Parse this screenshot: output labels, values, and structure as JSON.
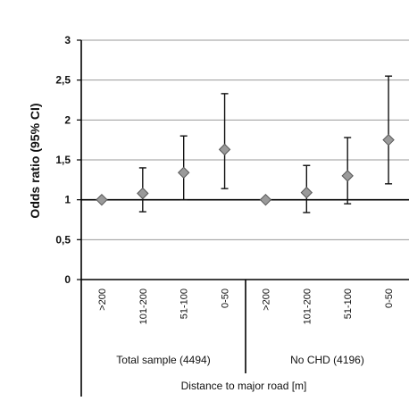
{
  "chart_data": {
    "type": "scatter",
    "ylabel": "Odds ratio (95% CI)",
    "xlabel": "Distance to major road [m]",
    "ylim": [
      0,
      3
    ],
    "yticks": [
      {
        "value": 0,
        "label": "0"
      },
      {
        "value": 0.5,
        "label": "0,5"
      },
      {
        "value": 1,
        "label": "1"
      },
      {
        "value": 1.5,
        "label": "1,5"
      },
      {
        "value": 2,
        "label": "2"
      },
      {
        "value": 2.5,
        "label": "2,5"
      },
      {
        "value": 3,
        "label": "3"
      }
    ],
    "grid": true,
    "reference_line": 1,
    "groups": [
      {
        "label": "Total sample (4494)",
        "points": [
          {
            "category": ">200",
            "or": 1.0,
            "ci_low": 1.0,
            "ci_high": 1.0
          },
          {
            "category": "101-200",
            "or": 1.08,
            "ci_low": 0.85,
            "ci_high": 1.4
          },
          {
            "category": "51-100",
            "or": 1.34,
            "ci_low": 1.0,
            "ci_high": 1.8
          },
          {
            "category": "0-50",
            "or": 1.63,
            "ci_low": 1.14,
            "ci_high": 2.33
          }
        ]
      },
      {
        "label": "No CHD (4196)",
        "points": [
          {
            "category": ">200",
            "or": 1.0,
            "ci_low": 1.0,
            "ci_high": 1.0
          },
          {
            "category": "101-200",
            "or": 1.09,
            "ci_low": 0.84,
            "ci_high": 1.43
          },
          {
            "category": "51-100",
            "or": 1.3,
            "ci_low": 0.95,
            "ci_high": 1.78
          },
          {
            "category": "0-50",
            "or": 1.75,
            "ci_low": 1.2,
            "ci_high": 2.55
          }
        ]
      }
    ],
    "colors": {
      "marker_fill": "#9a9a9a",
      "marker_stroke": "#555555",
      "errorbar": "#111111",
      "grid": "#999999",
      "axis": "#000000"
    }
  }
}
